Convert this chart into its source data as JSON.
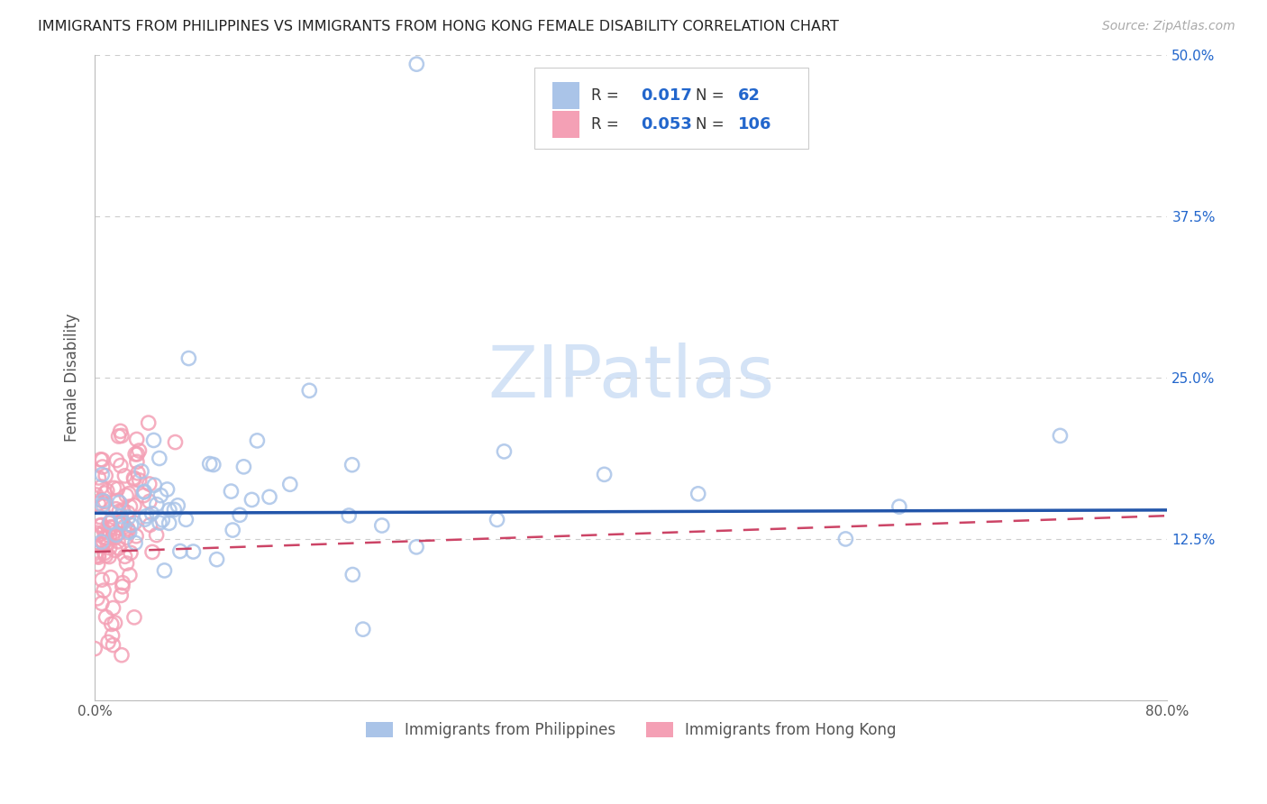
{
  "title": "IMMIGRANTS FROM PHILIPPINES VS IMMIGRANTS FROM HONG KONG FEMALE DISABILITY CORRELATION CHART",
  "source": "Source: ZipAtlas.com",
  "ylabel": "Female Disability",
  "x_min": 0.0,
  "x_max": 0.8,
  "y_min": 0.0,
  "y_max": 0.5,
  "x_ticks": [
    0.0,
    0.2,
    0.4,
    0.6,
    0.8
  ],
  "x_tick_labels": [
    "0.0%",
    "",
    "",
    "",
    "80.0%"
  ],
  "y_ticks": [
    0.0,
    0.125,
    0.25,
    0.375,
    0.5
  ],
  "y_tick_labels_right": [
    "",
    "12.5%",
    "25.0%",
    "37.5%",
    "50.0%"
  ],
  "legend_label1": "Immigrants from Philippines",
  "legend_label2": "Immigrants from Hong Kong",
  "R1": 0.017,
  "N1": 62,
  "R2": 0.053,
  "N2": 106,
  "color1": "#aac4e8",
  "color2": "#f4a0b5",
  "trend1_color": "#2255aa",
  "trend2_color": "#cc4466",
  "background_color": "#ffffff",
  "grid_color": "#cccccc",
  "title_color": "#222222",
  "watermark_color": "#d0e0f5",
  "seed": 7
}
